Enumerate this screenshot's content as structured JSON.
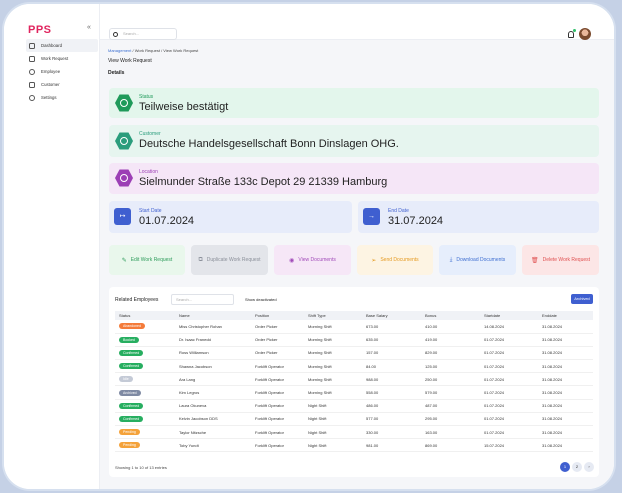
{
  "brand": "PPS",
  "sidebar": {
    "items": [
      {
        "label": "Dashboard"
      },
      {
        "label": "Work Request"
      },
      {
        "label": "Employee"
      },
      {
        "label": "Customer"
      },
      {
        "label": "Settings"
      }
    ]
  },
  "search": {
    "placeholder": "Search..."
  },
  "breadcrumb": {
    "part1": "Management",
    "part2": " / Work Request / View Work Request"
  },
  "page": {
    "title": "View Work Request",
    "section": "Details"
  },
  "status": {
    "label": "Status",
    "value": "Teilweise bestätigt"
  },
  "customer": {
    "label": "Customer",
    "value": "Deutsche Handelsgesellschaft Bonn Dinslagen OHG."
  },
  "location": {
    "label": "Location",
    "value": "Sielmunder Straße  133c Depot 29 21339 Hamburg"
  },
  "dates": {
    "start_label": "Start Date",
    "start_value": "01.07.2024",
    "end_label": "End Date",
    "end_value": "31.07.2024"
  },
  "actions": {
    "edit": "Edit Work Request",
    "duplicate": "Duplicate Work Request",
    "view": "View Documents",
    "send": "Send Documents",
    "download": "Download Documents",
    "delete": "Delete Work Request"
  },
  "employees": {
    "title": "Related Employees",
    "search_placeholder": "Search...",
    "show_deactivated": "Show deactivated",
    "archived": "Archived",
    "headers": [
      "Status",
      "Name",
      "Position",
      "Shift Type",
      "Base Salary",
      "Bonus",
      "Startdate",
      "Enddate"
    ],
    "rows": [
      {
        "status": "Abandoned",
        "color": "#f47b3a",
        "name": "Miss Christopher Rohan",
        "position": "Order Picker",
        "shift": "Morning Shift",
        "salary": "673.00",
        "bonus": "410.00",
        "start": "14.08.2024",
        "end": "31.08.2024"
      },
      {
        "status": "Booked",
        "color": "#27ae60",
        "name": "Dr. Isaac Franecki",
        "position": "Order Picker",
        "shift": "Morning Shift",
        "salary": "635.00",
        "bonus": "419.00",
        "start": "01.07.2024",
        "end": "31.08.2024"
      },
      {
        "status": "Confirmed",
        "color": "#27ae60",
        "name": "Ross Williamson",
        "position": "Order Picker",
        "shift": "Morning Shift",
        "salary": "157.00",
        "bonus": "829.00",
        "start": "01.07.2024",
        "end": "31.08.2024"
      },
      {
        "status": "Confirmed",
        "color": "#27ae60",
        "name": "Shawna Jacobson",
        "position": "Forklift Operator",
        "shift": "Morning Shift",
        "salary": "84.00",
        "bonus": "125.00",
        "start": "01.07.2024",
        "end": "31.08.2024"
      },
      {
        "status": "Idle",
        "color": "#c4cad6",
        "name": "Ara Lang",
        "position": "Forklift Operator",
        "shift": "Morning Shift",
        "salary": "988.00",
        "bonus": "250.00",
        "start": "01.07.2024",
        "end": "31.08.2024"
      },
      {
        "status": "Archived",
        "color": "#7f8aa3",
        "name": "Kim Legros",
        "position": "Forklift Operator",
        "shift": "Morning Shift",
        "salary": "558.00",
        "bonus": "579.00",
        "start": "01.07.2024",
        "end": "31.08.2024"
      },
      {
        "status": "Confirmed",
        "color": "#27ae60",
        "name": "Laura Okuneva",
        "position": "Forklift Operator",
        "shift": "Night Shift",
        "salary": "486.00",
        "bonus": "487.00",
        "start": "01.07.2024",
        "end": "31.08.2024"
      },
      {
        "status": "Confirmed",
        "color": "#27ae60",
        "name": "Kelvin Jacobson DDS",
        "position": "Forklift Operator",
        "shift": "Night Shift",
        "salary": "577.00",
        "bonus": "295.00",
        "start": "01.07.2024",
        "end": "31.08.2024"
      },
      {
        "status": "Pending",
        "color": "#f4a23a",
        "name": "Taylor Nitzsche",
        "position": "Forklift Operator",
        "shift": "Night Shift",
        "salary": "330.00",
        "bonus": "163.00",
        "start": "01.07.2024",
        "end": "31.08.2024"
      },
      {
        "status": "Pending",
        "color": "#f4a23a",
        "name": "Toby Yundt",
        "position": "Forklift Operator",
        "shift": "Night Shift",
        "salary": "981.00",
        "bonus": "869.00",
        "start": "15.07.2024",
        "end": "31.08.2024"
      }
    ],
    "footer": "Showing 1 to 10 of 13 entries",
    "pages": [
      "1",
      "2",
      "›"
    ]
  }
}
